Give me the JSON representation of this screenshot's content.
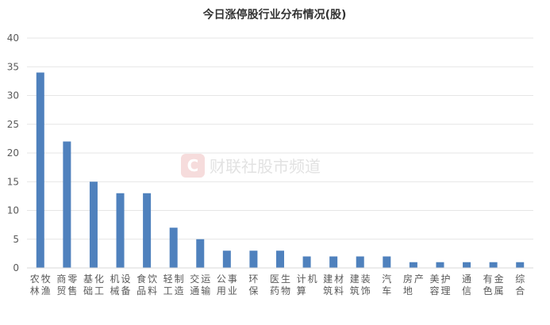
{
  "chart_data": {
    "type": "bar",
    "title": "今日涨停股行业分布情况(股)",
    "categories": [
      "农林牧渔",
      "商贸零售",
      "基础化工",
      "机械设备",
      "食品饮料",
      "轻工制造",
      "交通运输",
      "公用事业",
      "环保",
      "医药生物",
      "计算机",
      "建筑材料",
      "建筑装饰",
      "汽车",
      "房地产",
      "美容护理",
      "通信",
      "有色金属",
      "综合"
    ],
    "values": [
      34,
      22,
      15,
      13,
      13,
      7,
      5,
      3,
      3,
      3,
      2,
      2,
      2,
      2,
      1,
      1,
      1,
      1,
      1
    ],
    "ylim": [
      0,
      40
    ],
    "yticks": [
      0,
      5,
      10,
      15,
      20,
      25,
      30,
      35,
      40
    ],
    "grid": true,
    "bar_color": "#4f81bd",
    "watermark": "财联社股市频道"
  }
}
